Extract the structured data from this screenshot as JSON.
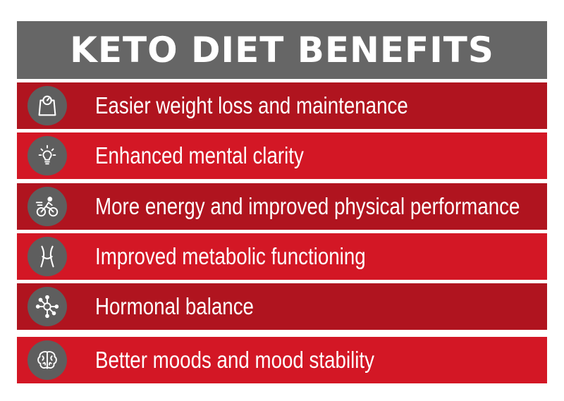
{
  "title": "KETO DIET BENEFITS",
  "colors": {
    "header": "#666666",
    "row_dark": "#b0141f",
    "row_light": "#d31725",
    "icon_circle": "#5e5e5e",
    "text": "#ffffff"
  },
  "benefits": [
    {
      "label": "Easier weight loss and maintenance",
      "icon": "scale-icon"
    },
    {
      "label": "Enhanced mental clarity",
      "icon": "lightbulb-icon"
    },
    {
      "label": "More energy and improved physical performance",
      "icon": "cyclist-icon"
    },
    {
      "label": "Improved metabolic functioning",
      "icon": "waist-icon"
    },
    {
      "label": "Hormonal balance",
      "icon": "molecule-icon"
    },
    {
      "label": "Better moods and mood stability",
      "icon": "brain-icon"
    }
  ]
}
